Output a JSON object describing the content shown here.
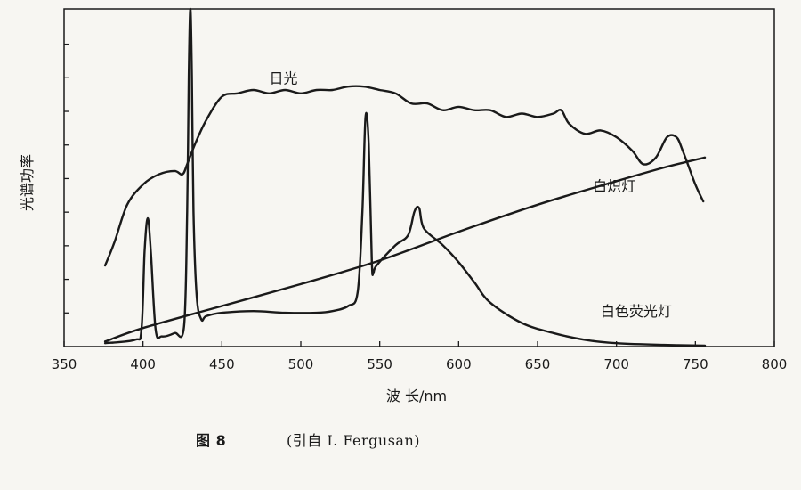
{
  "chart_data": {
    "type": "line",
    "title": "",
    "xlabel": "波 长/nm",
    "ylabel": "光谱功率",
    "xlim": [
      350,
      800
    ],
    "ylim": [
      0,
      100
    ],
    "x_ticks": [
      350,
      400,
      450,
      500,
      550,
      600,
      650,
      700,
      750,
      800
    ],
    "y_ticks_count": 9,
    "grid": false,
    "legend": "none",
    "line_color": "#1a1a1a",
    "series": [
      {
        "name": "日光",
        "label_at": [
          480,
          78
        ],
        "points": [
          [
            376,
            24
          ],
          [
            382,
            31
          ],
          [
            390,
            42
          ],
          [
            400,
            48
          ],
          [
            410,
            51
          ],
          [
            420,
            52
          ],
          [
            425,
            51
          ],
          [
            428,
            54
          ],
          [
            433,
            60
          ],
          [
            440,
            67
          ],
          [
            450,
            74
          ],
          [
            460,
            75
          ],
          [
            470,
            76
          ],
          [
            480,
            75
          ],
          [
            490,
            76
          ],
          [
            500,
            75
          ],
          [
            510,
            76
          ],
          [
            520,
            76
          ],
          [
            530,
            77
          ],
          [
            540,
            77
          ],
          [
            550,
            76
          ],
          [
            560,
            75
          ],
          [
            570,
            72
          ],
          [
            580,
            72
          ],
          [
            590,
            70
          ],
          [
            600,
            71
          ],
          [
            610,
            70
          ],
          [
            620,
            70
          ],
          [
            630,
            68
          ],
          [
            640,
            69
          ],
          [
            650,
            68
          ],
          [
            660,
            69
          ],
          [
            665,
            70
          ],
          [
            670,
            66
          ],
          [
            680,
            63
          ],
          [
            690,
            64
          ],
          [
            700,
            62
          ],
          [
            710,
            58
          ],
          [
            717,
            54
          ],
          [
            725,
            56
          ],
          [
            732,
            62
          ],
          [
            738,
            62
          ],
          [
            742,
            58
          ],
          [
            750,
            48
          ],
          [
            755,
            43
          ]
        ]
      },
      {
        "name": "白炽灯",
        "label_at": [
          685,
          46
        ],
        "points": [
          [
            376,
            1.5
          ],
          [
            400,
            5.5
          ],
          [
            450,
            12
          ],
          [
            500,
            18.5
          ],
          [
            550,
            25.5
          ],
          [
            600,
            34
          ],
          [
            650,
            42
          ],
          [
            700,
            49
          ],
          [
            730,
            53
          ],
          [
            756,
            56
          ]
        ]
      },
      {
        "name": "白色荧光灯",
        "label_at": [
          690,
          9
        ],
        "points": [
          [
            376,
            1
          ],
          [
            395,
            2
          ],
          [
            399,
            5
          ],
          [
            401,
            28
          ],
          [
            403,
            38
          ],
          [
            405,
            28
          ],
          [
            408,
            5
          ],
          [
            412,
            3
          ],
          [
            420,
            4
          ],
          [
            426,
            6
          ],
          [
            428,
            40
          ],
          [
            429,
            80
          ],
          [
            430,
            100
          ],
          [
            431,
            80
          ],
          [
            432,
            40
          ],
          [
            434,
            15
          ],
          [
            437,
            8
          ],
          [
            440,
            9
          ],
          [
            450,
            10
          ],
          [
            470,
            10.5
          ],
          [
            490,
            10
          ],
          [
            510,
            10
          ],
          [
            520,
            10.5
          ],
          [
            530,
            12
          ],
          [
            536,
            16
          ],
          [
            539,
            40
          ],
          [
            541,
            68
          ],
          [
            543,
            60
          ],
          [
            545,
            25
          ],
          [
            546,
            22
          ],
          [
            548,
            24
          ],
          [
            560,
            30
          ],
          [
            568,
            33
          ],
          [
            572,
            40
          ],
          [
            575,
            41
          ],
          [
            578,
            35
          ],
          [
            590,
            30
          ],
          [
            600,
            25
          ],
          [
            610,
            19
          ],
          [
            620,
            13
          ],
          [
            640,
            7
          ],
          [
            660,
            4
          ],
          [
            680,
            2
          ],
          [
            700,
            1
          ],
          [
            730,
            0.5
          ],
          [
            756,
            0.3
          ]
        ]
      }
    ]
  },
  "caption": {
    "figure": "图 8",
    "source": "(引自 I. Fergusan)"
  }
}
